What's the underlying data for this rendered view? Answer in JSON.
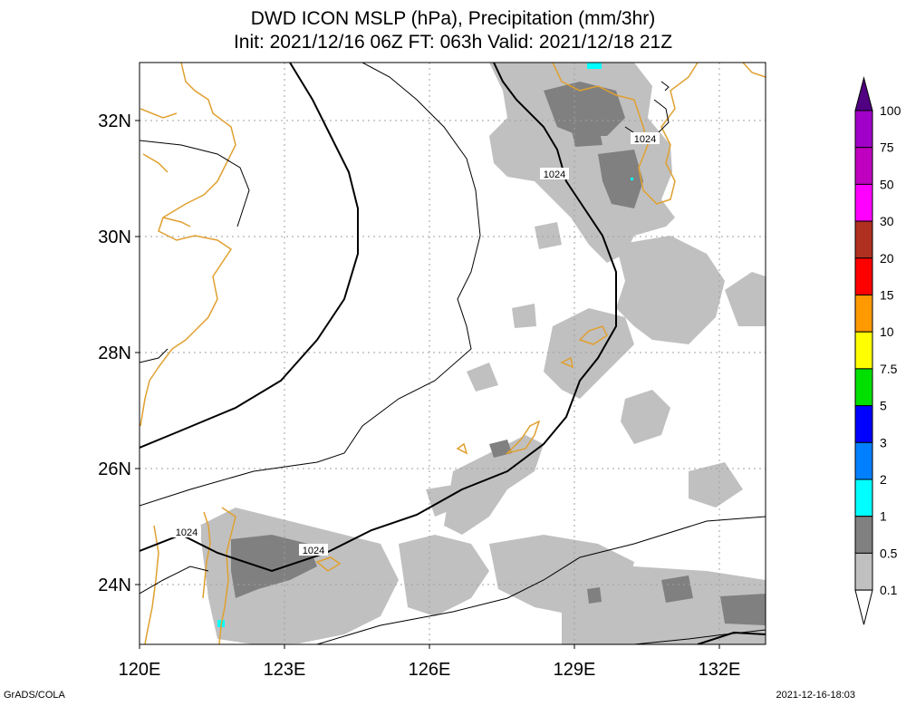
{
  "title": {
    "line1": "DWD ICON MSLP (hPa), Precipitation (mm/3hr)",
    "line2": "Init: 2021/12/16 06Z  FT: 063h  Valid: 2021/12/18 21Z"
  },
  "axes": {
    "lon_labels": [
      "120E",
      "123E",
      "126E",
      "129E",
      "132E"
    ],
    "lat_labels": [
      "32N",
      "30N",
      "28N",
      "26N",
      "24N"
    ]
  },
  "isobar_labels": [
    "1024",
    "1024",
    "1024",
    "1024"
  ],
  "legend": {
    "levels": [
      {
        "label": "100",
        "color": "#a000c8"
      },
      {
        "label": "75",
        "color": "#c000c0"
      },
      {
        "label": "50",
        "color": "#ff00ff"
      },
      {
        "label": "30",
        "color": "#b03020"
      },
      {
        "label": "20",
        "color": "#ff0000"
      },
      {
        "label": "15",
        "color": "#ff9900"
      },
      {
        "label": "10",
        "color": "#ffff00"
      },
      {
        "label": "7.5",
        "color": "#00e000"
      },
      {
        "label": "5",
        "color": "#0000ff"
      },
      {
        "label": "3",
        "color": "#0080ff"
      },
      {
        "label": "2",
        "color": "#00ffff"
      },
      {
        "label": "1",
        "color": "#808080"
      },
      {
        "label": "0.5",
        "color": "#c0c0c0"
      },
      {
        "label": "0.1",
        "color": "#ffffff"
      }
    ],
    "top_color": "#500080"
  },
  "colors": {
    "coast": "#e0a030",
    "isobar": "#000000",
    "grid": "#a0a0a0",
    "precip_light": "#c0c0c0",
    "precip_mid": "#808080",
    "precip_cyan": "#00ffff"
  },
  "footer": {
    "left": "GrADS/COLA",
    "right": "2021-12-16-18:03"
  }
}
